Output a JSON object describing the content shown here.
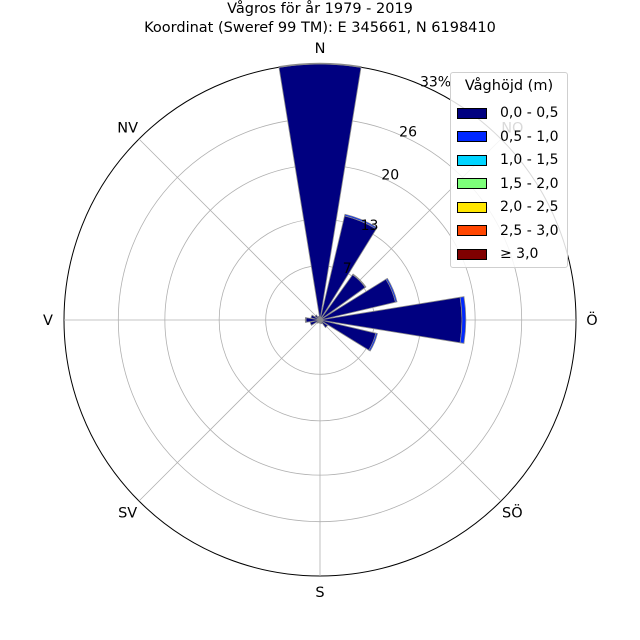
{
  "title": {
    "line1": "Vågros för år 1979 - 2019",
    "line2": "Koordinat (Sweref 99 TM): E 345661, N 6198410"
  },
  "chart_data": {
    "type": "polar-stacked-bar",
    "title": "Vågros för år 1979 - 2019",
    "subtitle": "Koordinat (Sweref 99 TM): E 345661, N 6198410",
    "directions": [
      "N",
      "NO",
      "Ö",
      "SÖ",
      "S",
      "SV",
      "V",
      "NV"
    ],
    "radial_ticks": [
      7,
      13,
      20,
      26,
      33
    ],
    "radial_tick_labels": [
      "7",
      "13",
      "20",
      "26",
      "33%"
    ],
    "rmax": 33,
    "legend_title": "Våghöjd (m)",
    "legend_placement": "top-right",
    "series": [
      {
        "name": "0,0 - 0,5",
        "color": "#000080"
      },
      {
        "name": "0,5 - 1,0",
        "color": "#0028ff"
      },
      {
        "name": "1,0 - 1,5",
        "color": "#00d4ff"
      },
      {
        "name": "1,5 - 2,0",
        "color": "#7dff7a"
      },
      {
        "name": "2,0 - 2,5",
        "color": "#ffe600"
      },
      {
        "name": "2,5 - 3,0",
        "color": "#ff4600"
      },
      {
        "name": "≥ 3,0",
        "color": "#800000"
      }
    ],
    "sectors": [
      {
        "angle": 0,
        "values": [
          33.0,
          0.1,
          0,
          0,
          0,
          0,
          0
        ]
      },
      {
        "angle": 22.5,
        "values": [
          13.8,
          0.2,
          0,
          0,
          0,
          0,
          0
        ]
      },
      {
        "angle": 45,
        "values": [
          7.2,
          0.1,
          0,
          0,
          0,
          0,
          0
        ]
      },
      {
        "angle": 67.5,
        "values": [
          10.0,
          0.2,
          0,
          0,
          0,
          0,
          0
        ]
      },
      {
        "angle": 90,
        "values": [
          18.3,
          0.5,
          0,
          0,
          0,
          0,
          0
        ]
      },
      {
        "angle": 112.5,
        "values": [
          7.4,
          0.2,
          0,
          0,
          0,
          0,
          0
        ]
      },
      {
        "angle": 135,
        "values": [
          1.2,
          0,
          0,
          0,
          0,
          0,
          0
        ]
      },
      {
        "angle": 157.5,
        "values": [
          0.5,
          0,
          0,
          0,
          0,
          0,
          0
        ]
      },
      {
        "angle": 180,
        "values": [
          0.4,
          0,
          0,
          0,
          0,
          0,
          0
        ]
      },
      {
        "angle": 202.5,
        "values": [
          0.4,
          0,
          0,
          0,
          0,
          0,
          0
        ]
      },
      {
        "angle": 225,
        "values": [
          0.5,
          0,
          0,
          0,
          0,
          0,
          0
        ]
      },
      {
        "angle": 247.5,
        "values": [
          1.3,
          0,
          0,
          0,
          0,
          0,
          0
        ]
      },
      {
        "angle": 270,
        "values": [
          1.8,
          0.1,
          0,
          0,
          0,
          0,
          0
        ]
      },
      {
        "angle": 292.5,
        "values": [
          1.2,
          0,
          0,
          0,
          0,
          0,
          0
        ]
      },
      {
        "angle": 315,
        "values": [
          0.8,
          0,
          0,
          0,
          0,
          0,
          0
        ]
      },
      {
        "angle": 337.5,
        "values": [
          0.5,
          0,
          0,
          0,
          0,
          0,
          0
        ]
      }
    ],
    "grid": true
  }
}
